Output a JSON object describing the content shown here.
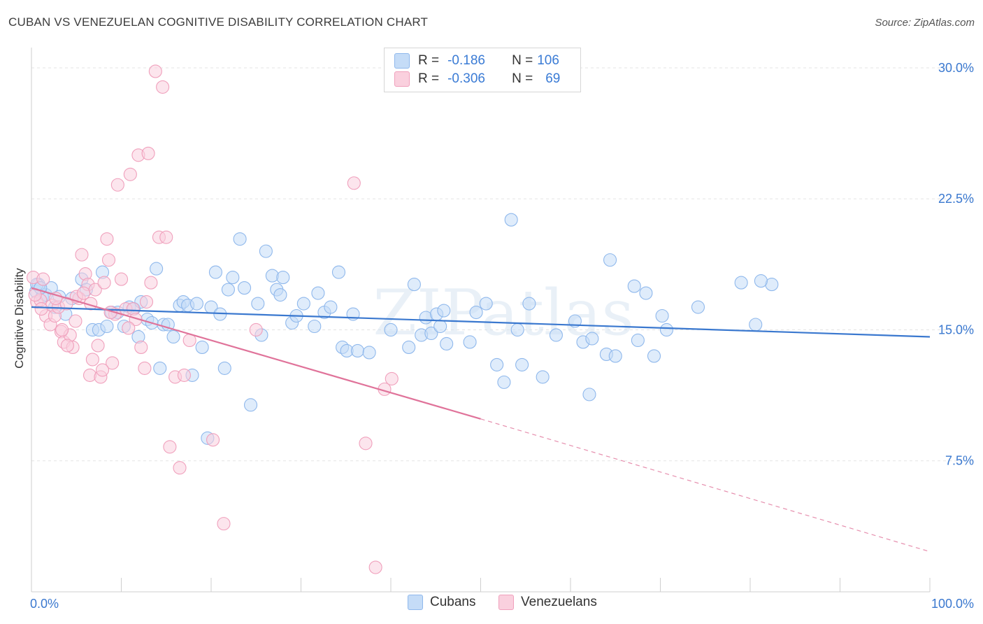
{
  "title": "CUBAN VS VENEZUELAN COGNITIVE DISABILITY CORRELATION CHART",
  "source": "Source: ZipAtlas.com",
  "watermark": "ZIPatlas",
  "legend": {
    "series": [
      {
        "name": "Cubans",
        "r_label": "R =",
        "r_value": "-0.186",
        "n_label": "N =",
        "n_value": "106",
        "color": "#8fb8ec",
        "fill": "#c5dcf7"
      },
      {
        "name": "Venezuelans",
        "r_label": "R =",
        "r_value": "-0.306",
        "n_label": "N =",
        "n_value": "69",
        "color": "#f0a0bc",
        "fill": "#fad0de"
      }
    ]
  },
  "chart_data": {
    "type": "scatter",
    "title": "CUBAN VS VENEZUELAN COGNITIVE DISABILITY CORRELATION CHART",
    "xlabel": "",
    "ylabel": "Cognitive Disability",
    "xlim": [
      0,
      100
    ],
    "ylim": [
      0,
      31
    ],
    "x_tick_labels": [
      "0.0%",
      "100.0%"
    ],
    "y_ticks": [
      7.5,
      15.0,
      22.5,
      30.0
    ],
    "y_tick_labels": [
      "7.5%",
      "15.0%",
      "22.5%",
      "30.0%"
    ],
    "grid": true,
    "legend_position": "top-center",
    "series": [
      {
        "name": "Cubans",
        "color": "#3a78cf",
        "trend": {
          "x0": 0,
          "y0": 16.3,
          "x1": 100,
          "y1": 14.6
        },
        "points": [
          [
            0.5,
            17.2
          ],
          [
            0.8,
            17.6
          ],
          [
            1.2,
            16.9
          ],
          [
            1.6,
            17.0
          ],
          [
            2.2,
            17.4
          ],
          [
            2.6,
            16.3
          ],
          [
            3.1,
            16.9
          ],
          [
            3.8,
            15.9
          ],
          [
            4.5,
            16.8
          ],
          [
            5.6,
            17.9
          ],
          [
            6.1,
            17.3
          ],
          [
            6.8,
            15.0
          ],
          [
            7.5,
            15.0
          ],
          [
            7.9,
            18.3
          ],
          [
            8.4,
            15.2
          ],
          [
            8.9,
            16.0
          ],
          [
            9.6,
            16.0
          ],
          [
            10.3,
            15.2
          ],
          [
            10.9,
            16.3
          ],
          [
            11.4,
            16.2
          ],
          [
            11.9,
            14.6
          ],
          [
            12.2,
            16.6
          ],
          [
            12.9,
            15.6
          ],
          [
            13.4,
            15.4
          ],
          [
            13.9,
            18.5
          ],
          [
            14.3,
            12.8
          ],
          [
            14.7,
            15.3
          ],
          [
            15.2,
            15.3
          ],
          [
            15.8,
            14.6
          ],
          [
            16.5,
            16.4
          ],
          [
            16.9,
            16.6
          ],
          [
            17.4,
            16.4
          ],
          [
            17.9,
            12.4
          ],
          [
            18.4,
            16.5
          ],
          [
            19.0,
            14.0
          ],
          [
            19.6,
            8.8
          ],
          [
            20.0,
            16.3
          ],
          [
            20.5,
            18.3
          ],
          [
            21.0,
            15.9
          ],
          [
            21.5,
            12.8
          ],
          [
            21.9,
            17.3
          ],
          [
            22.4,
            18.0
          ],
          [
            23.2,
            20.2
          ],
          [
            23.7,
            17.4
          ],
          [
            24.4,
            10.7
          ],
          [
            25.2,
            16.5
          ],
          [
            25.6,
            14.7
          ],
          [
            26.1,
            19.5
          ],
          [
            26.8,
            18.1
          ],
          [
            27.3,
            17.3
          ],
          [
            28.0,
            18.0
          ],
          [
            27.7,
            17.0
          ],
          [
            29.0,
            15.4
          ],
          [
            29.5,
            15.8
          ],
          [
            30.3,
            16.5
          ],
          [
            31.5,
            15.2
          ],
          [
            31.9,
            17.1
          ],
          [
            32.6,
            16.0
          ],
          [
            33.3,
            16.3
          ],
          [
            34.2,
            18.3
          ],
          [
            34.6,
            14.0
          ],
          [
            35.1,
            13.8
          ],
          [
            35.8,
            15.9
          ],
          [
            36.3,
            13.8
          ],
          [
            37.6,
            13.7
          ],
          [
            40.0,
            15.0
          ],
          [
            42.0,
            14.0
          ],
          [
            42.6,
            17.6
          ],
          [
            43.4,
            14.7
          ],
          [
            43.9,
            15.7
          ],
          [
            44.5,
            14.8
          ],
          [
            45.1,
            15.9
          ],
          [
            45.5,
            15.2
          ],
          [
            45.9,
            16.1
          ],
          [
            46.2,
            14.2
          ],
          [
            48.8,
            14.3
          ],
          [
            49.5,
            16.0
          ],
          [
            50.6,
            16.5
          ],
          [
            51.8,
            13.0
          ],
          [
            52.6,
            12.0
          ],
          [
            53.4,
            21.3
          ],
          [
            54.1,
            15.0
          ],
          [
            54.6,
            13.0
          ],
          [
            55.4,
            16.5
          ],
          [
            56.9,
            12.3
          ],
          [
            58.4,
            14.7
          ],
          [
            60.5,
            15.5
          ],
          [
            61.4,
            14.3
          ],
          [
            62.1,
            11.3
          ],
          [
            62.4,
            14.5
          ],
          [
            64.0,
            13.6
          ],
          [
            64.4,
            19.0
          ],
          [
            65.0,
            13.5
          ],
          [
            67.1,
            17.5
          ],
          [
            67.5,
            14.4
          ],
          [
            68.4,
            17.1
          ],
          [
            69.3,
            13.5
          ],
          [
            70.2,
            15.8
          ],
          [
            70.7,
            15.0
          ],
          [
            74.2,
            16.3
          ],
          [
            79.0,
            17.7
          ],
          [
            80.6,
            15.3
          ],
          [
            82.4,
            17.6
          ],
          [
            81.2,
            17.8
          ],
          [
            0.6,
            17.6
          ],
          [
            1.0,
            17.4
          ]
        ]
      },
      {
        "name": "Venezuelans",
        "color": "#e0739a",
        "trend": {
          "x0": 0,
          "y0": 17.4,
          "x1": 50,
          "y1": 9.9
        },
        "trend_dashed": {
          "x0": 50,
          "y0": 9.9,
          "x1": 100,
          "y1": 2.3
        },
        "points": [
          [
            0.2,
            18.0
          ],
          [
            0.6,
            16.6
          ],
          [
            1.0,
            16.7
          ],
          [
            1.3,
            17.9
          ],
          [
            1.6,
            15.8
          ],
          [
            2.1,
            15.3
          ],
          [
            2.3,
            16.4
          ],
          [
            2.6,
            15.8
          ],
          [
            3.0,
            16.3
          ],
          [
            3.3,
            14.9
          ],
          [
            3.6,
            14.3
          ],
          [
            3.9,
            16.5
          ],
          [
            4.3,
            14.7
          ],
          [
            4.6,
            14.0
          ],
          [
            4.9,
            15.5
          ],
          [
            5.3,
            16.8
          ],
          [
            5.6,
            19.3
          ],
          [
            6.0,
            18.2
          ],
          [
            6.3,
            17.6
          ],
          [
            6.5,
            12.4
          ],
          [
            6.8,
            13.3
          ],
          [
            7.1,
            17.3
          ],
          [
            7.4,
            14.1
          ],
          [
            7.7,
            12.3
          ],
          [
            8.1,
            17.7
          ],
          [
            8.4,
            20.2
          ],
          [
            8.6,
            19.0
          ],
          [
            9.0,
            13.1
          ],
          [
            9.3,
            15.9
          ],
          [
            9.6,
            23.3
          ],
          [
            10.0,
            17.9
          ],
          [
            10.5,
            16.2
          ],
          [
            11.0,
            23.9
          ],
          [
            11.3,
            16.2
          ],
          [
            11.6,
            15.6
          ],
          [
            11.9,
            25.0
          ],
          [
            12.2,
            14.0
          ],
          [
            12.6,
            12.8
          ],
          [
            13.0,
            25.1
          ],
          [
            13.3,
            17.7
          ],
          [
            13.8,
            29.8
          ],
          [
            14.2,
            20.3
          ],
          [
            14.6,
            28.9
          ],
          [
            15.0,
            20.3
          ],
          [
            15.4,
            8.3
          ],
          [
            16.0,
            12.3
          ],
          [
            16.5,
            7.1
          ],
          [
            17.0,
            12.4
          ],
          [
            17.6,
            14.4
          ],
          [
            20.2,
            8.7
          ],
          [
            21.4,
            3.9
          ],
          [
            25.0,
            15.0
          ],
          [
            35.9,
            23.4
          ],
          [
            37.2,
            8.5
          ],
          [
            38.3,
            1.4
          ],
          [
            39.3,
            11.6
          ],
          [
            40.1,
            12.2
          ],
          [
            0.4,
            17.0
          ],
          [
            1.1,
            16.2
          ],
          [
            2.7,
            16.8
          ],
          [
            3.4,
            15.0
          ],
          [
            4.0,
            14.1
          ],
          [
            5.0,
            16.9
          ],
          [
            5.8,
            17.1
          ],
          [
            6.6,
            16.5
          ],
          [
            7.9,
            12.7
          ],
          [
            8.8,
            16.0
          ],
          [
            10.8,
            15.1
          ],
          [
            12.8,
            16.6
          ]
        ]
      }
    ]
  }
}
